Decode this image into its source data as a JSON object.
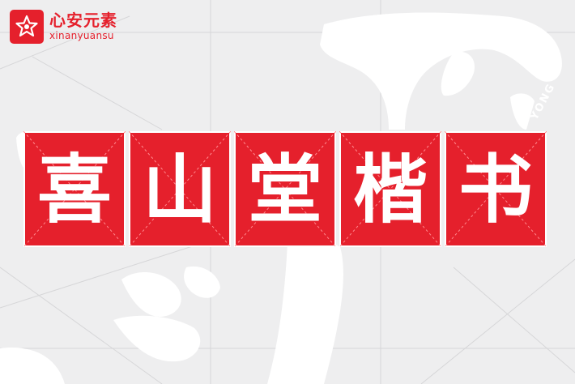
{
  "logo": {
    "name_cn": "心安元素",
    "name_en": "xinanyuansu"
  },
  "tiles": [
    "喜",
    "山",
    "堂",
    "楷",
    "书"
  ],
  "side_tag": "YONG",
  "colors": {
    "accent": "#e5202c",
    "background": "#eeeeef",
    "glyph": "#ffffff"
  }
}
